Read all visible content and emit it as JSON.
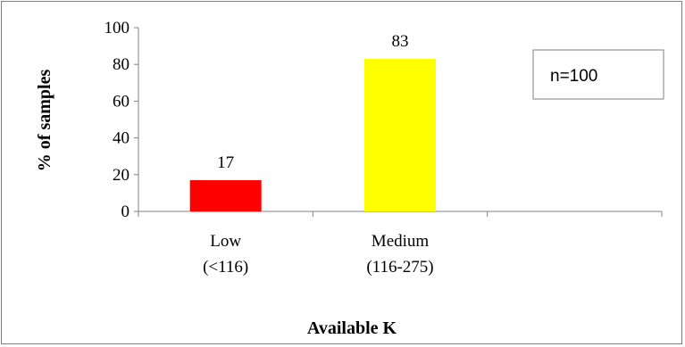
{
  "chart_data": {
    "type": "bar",
    "categories": [
      {
        "line1": "Low",
        "line2": "(<116)"
      },
      {
        "line1": "Medium",
        "line2": "(116-275)"
      },
      {
        "line1": "",
        "line2": ""
      }
    ],
    "values": [
      17,
      83,
      null
    ],
    "data_labels": [
      "17",
      "83",
      ""
    ],
    "bar_colors": [
      "#ff0000",
      "#ffff00",
      ""
    ],
    "ylabel": "% of samples",
    "xlabel": "Available K",
    "ylim": [
      0,
      100
    ],
    "y_ticks": [
      "0",
      "20",
      "40",
      "60",
      "80",
      "100"
    ],
    "grid": false,
    "annotation": "n=100"
  }
}
